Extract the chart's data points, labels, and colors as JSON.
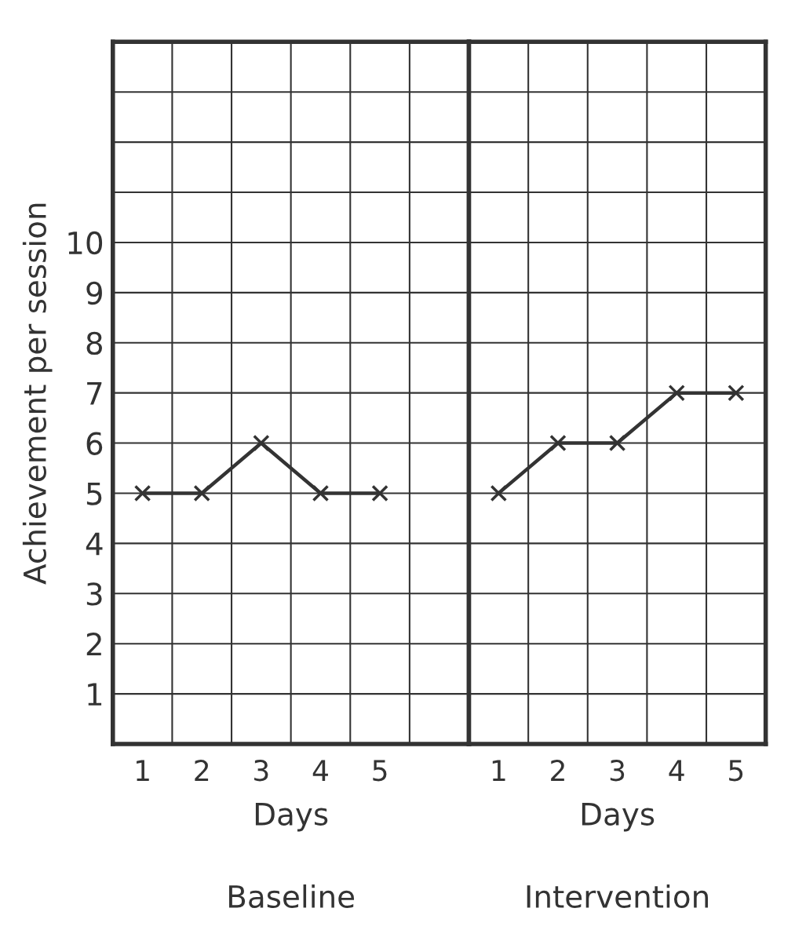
{
  "chart_data": [
    {
      "type": "line",
      "categories": [
        "1",
        "2",
        "3",
        "4",
        "5",
        null
      ],
      "xlabel": "Days",
      "ylabel": "Achievement per session",
      "series": [
        {
          "color": "#333333",
          "values": [
            5,
            5,
            6,
            5,
            5,
            null
          ]
        }
      ],
      "ylim": [
        0,
        14
      ],
      "yticks": [
        1,
        2,
        3,
        4,
        5,
        6,
        7,
        8,
        9,
        10,
        {
          "value": 11,
          "label": null
        },
        {
          "value": 12,
          "label": null
        },
        {
          "value": 13,
          "label": null
        }
      ],
      "grid": true,
      "legend": false,
      "marker": "cross",
      "line_style": "solid",
      "annotations": [
        "Baseline"
      ]
    },
    {
      "type": "line",
      "categories": [
        "1",
        "2",
        "3",
        "4",
        "5"
      ],
      "xlabel": "Days",
      "series": [
        {
          "color": "#333333",
          "values": [
            5,
            6,
            6,
            7,
            7
          ]
        }
      ],
      "ylim": [
        0,
        14
      ],
      "yticks": [
        1,
        2,
        3,
        4,
        5,
        6,
        7,
        8,
        9,
        10,
        {
          "value": 11,
          "label": null
        },
        {
          "value": 12,
          "label": null
        },
        {
          "value": 13,
          "label": null
        }
      ],
      "grid": true,
      "legend": false,
      "marker": "cross",
      "line_style": "solid",
      "tick_labels": "x",
      "annotations": [
        "Intervention"
      ]
    }
  ]
}
